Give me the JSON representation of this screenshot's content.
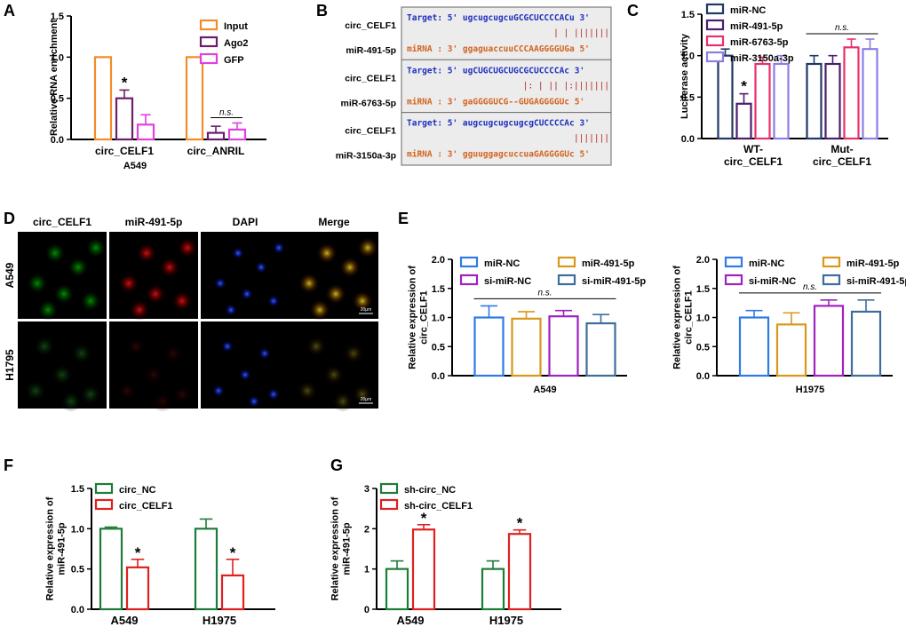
{
  "panels": {
    "A": "A",
    "B": "B",
    "C": "C",
    "D": "D",
    "E": "E",
    "F": "F",
    "G": "G"
  },
  "colors": {
    "orange": "#F28C28",
    "purple": "#6B1F6B",
    "magenta": "#E040E0",
    "navy": "#1F3864",
    "violet": "#4B1E6E",
    "pink": "#E8306A",
    "lavender": "#8A7FE6",
    "blue": "#2E7BE6",
    "gold": "#D9981C",
    "steel": "#3E6D9C",
    "green": "#1E7B3A",
    "red": "#E02020",
    "target_text": "#1D2FBF",
    "mirna_text": "#D2641E",
    "pair": "#B02020"
  },
  "chart_data": [
    {
      "id": "A",
      "type": "bar",
      "ylabel": "Relative RNA enrichment",
      "xlabel": "A549",
      "ylim": [
        0,
        1.5
      ],
      "yticks": [
        "0.0",
        "0.5",
        "1.0",
        "1.5"
      ],
      "categories": [
        "circ_CELF1",
        "circ_ANRIL"
      ],
      "series": [
        {
          "name": "Input",
          "values": [
            1.0,
            1.0
          ],
          "errors": [
            0,
            0
          ],
          "color": "#F28C28"
        },
        {
          "name": "Ago2",
          "values": [
            0.5,
            0.08
          ],
          "errors": [
            0.1,
            0.08
          ],
          "color": "#6B1F6B"
        },
        {
          "name": "GFP",
          "values": [
            0.18,
            0.12
          ],
          "errors": [
            0.12,
            0.08
          ],
          "color": "#E040E0"
        }
      ],
      "annotations": [
        {
          "text": "*"
        },
        {
          "text": "n.s."
        }
      ]
    },
    {
      "id": "C",
      "type": "bar",
      "ylabel": "Luciferase activity",
      "xlabel": "",
      "ylim": [
        0,
        1.5
      ],
      "yticks": [
        "0.0",
        "0.5",
        "1.0",
        "1.5"
      ],
      "categories": [
        "WT-\ncirc_CELF1",
        "Mut-\ncirc_CELF1"
      ],
      "series": [
        {
          "name": "miR-NC",
          "values": [
            1.0,
            0.9
          ],
          "errors": [
            0.08,
            0.1
          ],
          "color": "#1F3864"
        },
        {
          "name": "miR-491-5p",
          "values": [
            0.42,
            0.9
          ],
          "errors": [
            0.12,
            0.1
          ],
          "color": "#4B1E6E"
        },
        {
          "name": "miR-6763-5p",
          "values": [
            0.9,
            1.1
          ],
          "errors": [
            0.08,
            0.1
          ],
          "color": "#E8306A"
        },
        {
          "name": "miR-3150a-3p",
          "values": [
            0.9,
            1.08
          ],
          "errors": [
            0.1,
            0.12
          ],
          "color": "#8A7FE6"
        }
      ],
      "annotations": [
        {
          "text": "*"
        },
        {
          "text": "n.s."
        }
      ]
    },
    {
      "id": "E1",
      "type": "bar",
      "ylabel": "Relative expression of\ncirc_CELF1",
      "xlabel": "A549",
      "ylim": [
        0,
        2.0
      ],
      "yticks": [
        "0.0",
        "0.5",
        "1.0",
        "1.5",
        "2.0"
      ],
      "categories": [
        "A549"
      ],
      "series": [
        {
          "name": "miR-NC",
          "values": [
            1.0
          ],
          "errors": [
            0.2
          ],
          "color": "#2E7BE6"
        },
        {
          "name": "miR-491-5p",
          "values": [
            0.98
          ],
          "errors": [
            0.12
          ],
          "color": "#D9981C"
        },
        {
          "name": "si-miR-NC",
          "values": [
            1.02
          ],
          "errors": [
            0.1
          ],
          "color": "#A020C0"
        },
        {
          "name": "si-miR-491-5p",
          "values": [
            0.9
          ],
          "errors": [
            0.15
          ],
          "color": "#3E6D9C"
        }
      ],
      "annotations": [
        {
          "text": "n.s."
        }
      ]
    },
    {
      "id": "E2",
      "type": "bar",
      "ylabel": "Relative expression of\ncirc_CELF1",
      "xlabel": "H1975",
      "ylim": [
        0,
        2.0
      ],
      "yticks": [
        "0.0",
        "0.5",
        "1.0",
        "1.5",
        "2.0"
      ],
      "categories": [
        "H1975"
      ],
      "series": [
        {
          "name": "miR-NC",
          "values": [
            1.0
          ],
          "errors": [
            0.12
          ],
          "color": "#2E7BE6"
        },
        {
          "name": "miR-491-5p",
          "values": [
            0.88
          ],
          "errors": [
            0.2
          ],
          "color": "#D9981C"
        },
        {
          "name": "si-miR-NC",
          "values": [
            1.2
          ],
          "errors": [
            0.1
          ],
          "color": "#A020C0"
        },
        {
          "name": "si-miR-491-5p",
          "values": [
            1.1
          ],
          "errors": [
            0.2
          ],
          "color": "#3E6D9C"
        }
      ],
      "annotations": [
        {
          "text": "n.s."
        }
      ]
    },
    {
      "id": "F",
      "type": "bar",
      "ylabel": "Relative expression of\nmiR-491-5p",
      "xlabel": "",
      "ylim": [
        0,
        1.5
      ],
      "yticks": [
        "0.0",
        "0.5",
        "1.0",
        "1.5"
      ],
      "categories": [
        "A549",
        "H1975"
      ],
      "series": [
        {
          "name": "circ_NC",
          "values": [
            1.0,
            1.0
          ],
          "errors": [
            0.02,
            0.12
          ],
          "color": "#1E7B3A"
        },
        {
          "name": "circ_CELF1",
          "values": [
            0.52,
            0.42
          ],
          "errors": [
            0.1,
            0.2
          ],
          "color": "#E02020"
        }
      ],
      "annotations": [
        {
          "text": "*"
        },
        {
          "text": "*"
        }
      ]
    },
    {
      "id": "G",
      "type": "bar",
      "ylabel": "Relative expression of\nmiR-491-5p",
      "xlabel": "",
      "ylim": [
        0,
        3
      ],
      "yticks": [
        "0",
        "1",
        "2",
        "3"
      ],
      "categories": [
        "A549",
        "H1975"
      ],
      "series": [
        {
          "name": "sh-circ_NC",
          "values": [
            1.0,
            1.0
          ],
          "errors": [
            0.2,
            0.2
          ],
          "color": "#1E7B3A"
        },
        {
          "name": "sh-circ_CELF1",
          "values": [
            1.98,
            1.87
          ],
          "errors": [
            0.12,
            0.1
          ],
          "color": "#E02020"
        }
      ],
      "annotations": [
        {
          "text": "*"
        },
        {
          "text": "*"
        }
      ]
    }
  ],
  "panel_b": {
    "rows": [
      {
        "circ": "circ_CELF1",
        "mir": "miR-491-5p",
        "target_label": "Target: 5'",
        "target_seq": "ugcugcugcuGCGCUCCCCACu",
        "target_end": "3'",
        "pairs": "|  | |||||||",
        "mirna_label": "miRNA : 3'",
        "mirna_seq": "ggaguaccuuCCCAAGGGGUGa",
        "mirna_end": "5'"
      },
      {
        "circ": "circ_CELF1",
        "mir": "miR-6763-5p",
        "target_label": "Target: 5'",
        "target_seq": "ugCUGCUGCUGCGCUCCCCAc",
        "target_end": "3'",
        "pairs": "|: |  ||  |:|||||||",
        "mirna_label": "miRNA : 3'",
        "mirna_seq": "gaGGGGUCG--GUGAGGGGUc",
        "mirna_end": "5'"
      },
      {
        "circ": "circ_CELF1",
        "mir": "miR-3150a-3p",
        "target_label": "Target: 5'",
        "target_seq": "augcugcugcugcgCUCCCCAc",
        "target_end": "3'",
        "pairs": "|||||||",
        "mirna_label": "miRNA : 3'",
        "mirna_seq": "gguuggagcuccuaGAGGGGUc",
        "mirna_end": "5'"
      }
    ]
  },
  "panel_d": {
    "columns": [
      "circ_CELF1",
      "miR-491-5p",
      "DAPI",
      "Merge"
    ],
    "rows": [
      "A549",
      "H1795"
    ],
    "scale_label": "20μm"
  }
}
